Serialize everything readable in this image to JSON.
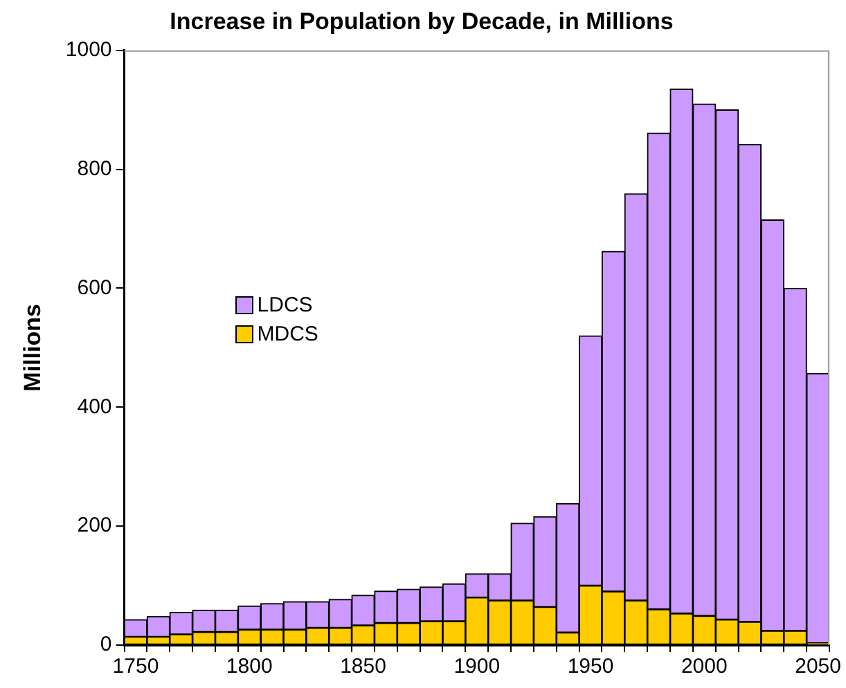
{
  "chart_data": {
    "type": "bar",
    "title": "Increase in Population by Decade, in Millions",
    "ylabel": "Millions",
    "categories": [
      "1750",
      null,
      null,
      null,
      null,
      "1800",
      null,
      null,
      null,
      null,
      "1850",
      null,
      null,
      null,
      null,
      "1900",
      null,
      null,
      null,
      null,
      "1950",
      null,
      null,
      null,
      null,
      "2000",
      null,
      null,
      null,
      null,
      "2050"
    ],
    "stacked": true,
    "series": [
      {
        "name": "MDCS",
        "color": "#ffcc00",
        "values": [
          14,
          14,
          18,
          22,
          22,
          26,
          26,
          26,
          29,
          29,
          33,
          37,
          37,
          40,
          40,
          80,
          75,
          75,
          64,
          21,
          100,
          90,
          75,
          60,
          53,
          49,
          43,
          39,
          24,
          24,
          3
        ]
      },
      {
        "name": "LDCS",
        "color": "#cc99ff",
        "values": [
          29,
          34,
          37,
          37,
          37,
          40,
          44,
          47,
          44,
          48,
          51,
          54,
          57,
          58,
          63,
          40,
          45,
          130,
          152,
          217,
          420,
          572,
          684,
          801,
          882,
          861,
          857,
          803,
          691,
          576,
          454
        ]
      }
    ],
    "ylim": [
      0,
      1000
    ],
    "yticks": [
      0,
      200,
      400,
      600,
      800,
      1000
    ],
    "grid": false,
    "legend": "left"
  }
}
